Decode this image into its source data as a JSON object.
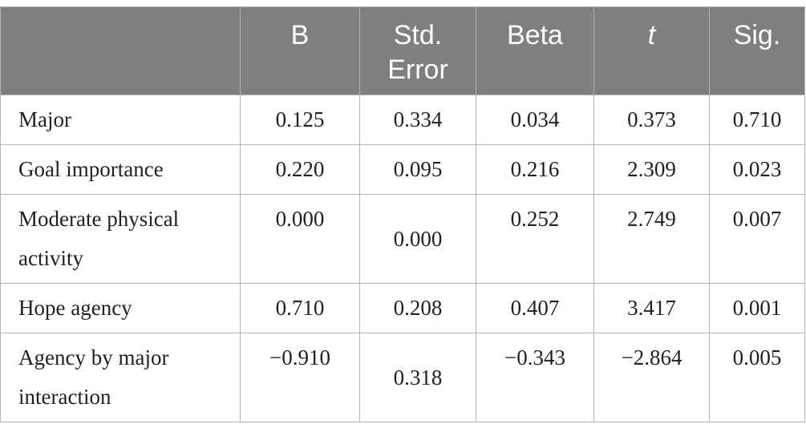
{
  "table": {
    "columns": [
      "B",
      "Std. Error",
      "Beta",
      "t",
      "Sig."
    ],
    "rows": [
      {
        "label": "Major",
        "values": [
          "0.125",
          "0.334",
          "0.034",
          "0.373",
          "0.710"
        ]
      },
      {
        "label": "Goal importance",
        "values": [
          "0.220",
          "0.095",
          "0.216",
          "2.309",
          "0.023"
        ]
      },
      {
        "label": "Moderate physical activity",
        "values": [
          "0.000",
          "0.000",
          "0.252",
          "2.749",
          "0.007"
        ]
      },
      {
        "label": "Hope agency",
        "values": [
          "0.710",
          "0.208",
          "0.407",
          "3.417",
          "0.001"
        ]
      },
      {
        "label": "Agency by major interaction",
        "values": [
          "−0.910",
          "0.318",
          "−0.343",
          "−2.864",
          "0.005"
        ]
      }
    ]
  },
  "colors": {
    "header_bg": "#7f7f7f",
    "header_text": "#ffffff",
    "rule": "#b5b5b5",
    "body_text": "#231f20"
  }
}
